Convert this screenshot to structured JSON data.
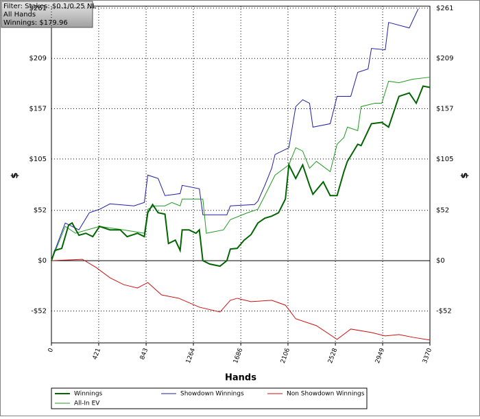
{
  "chart_data": {
    "type": "line",
    "filter": [
      "Filter: Stakes: $0.1/0.25 NL",
      "All Hands",
      "Winnings: $179.96"
    ],
    "x_label": "Hands",
    "y_label": "$",
    "xlim": [
      0,
      3370
    ],
    "xticks": [
      0,
      421,
      843,
      1264,
      1686,
      2106,
      2528,
      2949,
      3370
    ],
    "ylim": [
      -85,
      263
    ],
    "yticks": [
      {
        "value": -52,
        "label": "-$52"
      },
      {
        "value": 0,
        "label": "$0"
      },
      {
        "value": 52,
        "label": "$52"
      },
      {
        "value": 105,
        "label": "$105"
      },
      {
        "value": 157,
        "label": "$157"
      },
      {
        "value": 209,
        "label": "$209"
      },
      {
        "value": 261,
        "label": "$261"
      }
    ],
    "grid": true,
    "legend": "bottom",
    "series": [
      {
        "name": "Winnings",
        "color": "#006400",
        "x": [
          0,
          31,
          92,
          153,
          184,
          245,
          306,
          368,
          429,
          521,
          613,
          674,
          766,
          827,
          858,
          901,
          950,
          1011,
          1042,
          1103,
          1146,
          1164,
          1225,
          1287,
          1317,
          1348,
          1409,
          1501,
          1562,
          1593,
          1654,
          1716,
          1777,
          1838,
          1900,
          1961,
          2022,
          2083,
          2114,
          2175,
          2237,
          2298,
          2328,
          2420,
          2482,
          2543,
          2604,
          2635,
          2727,
          2757,
          2849,
          2941,
          3002,
          3094,
          3186,
          3248,
          3309,
          3370
        ],
        "values": [
          0,
          10.6,
          12.7,
          36.8,
          38.9,
          26.2,
          28.3,
          24.8,
          35.4,
          31.8,
          31.8,
          24.8,
          28.3,
          24.8,
          49.5,
          58.0,
          49.5,
          48.1,
          17.7,
          21.2,
          10.6,
          31.8,
          31.8,
          28.3,
          31.8,
          0,
          -3.5,
          -5.7,
          0,
          12.0,
          12.7,
          21.2,
          26.9,
          38.9,
          43.9,
          46.0,
          49.5,
          63.7,
          99.0,
          84.9,
          99.0,
          77.8,
          68.6,
          81.4,
          67.2,
          67.2,
          92.0,
          102.6,
          120.3,
          118.9,
          141.5,
          142.9,
          138.0,
          169.8,
          173.3,
          162.7,
          180.4,
          179.0
        ]
      },
      {
        "name": "Showdown Winnings",
        "color": "#1c1ca8",
        "x": [
          0,
          31,
          123,
          245,
          337,
          429,
          521,
          735,
          827,
          858,
          950,
          1011,
          1146,
          1164,
          1317,
          1348,
          1562,
          1593,
          1808,
          1838,
          1900,
          1961,
          1991,
          2114,
          2175,
          2237,
          2298,
          2328,
          2482,
          2543,
          2665,
          2727,
          2819,
          2849,
          2972,
          3002,
          3186,
          3266
        ],
        "values": [
          0,
          10.6,
          38.9,
          31.8,
          49.5,
          53.1,
          58.7,
          56.6,
          60.1,
          88.4,
          84.9,
          67.2,
          69.3,
          77.8,
          74.3,
          47.4,
          47.4,
          56.6,
          58.0,
          61.5,
          77.8,
          95.5,
          109.7,
          116.7,
          159.2,
          166.3,
          162.7,
          138.0,
          141.5,
          169.8,
          169.8,
          194.6,
          198.1,
          219.3,
          217.9,
          246.2,
          240.5,
          260.3
        ]
      },
      {
        "name": "Non Showdown Winnings",
        "color": "#cc1010",
        "x": [
          0,
          276,
          398,
          521,
          643,
          766,
          858,
          980,
          1134,
          1317,
          1501,
          1593,
          1654,
          1777,
          1961,
          2083,
          2175,
          2359,
          2543,
          2665,
          2849,
          2972,
          3094,
          3217,
          3370
        ],
        "values": [
          0,
          1.4,
          -7.1,
          -17.7,
          -24.8,
          -28.3,
          -22.6,
          -35.4,
          -38.9,
          -48.1,
          -53.1,
          -41.0,
          -38.9,
          -42.4,
          -41.0,
          -46.0,
          -60.1,
          -67.2,
          -81.4,
          -70.7,
          -74.3,
          -77.8,
          -76.4,
          -79.2,
          -82.1
        ]
      },
      {
        "name": "All-In EV",
        "color": "#1f9a1f",
        "x": [
          0,
          123,
          214,
          429,
          643,
          827,
          858,
          919,
          1011,
          1072,
          1146,
          1164,
          1348,
          1379,
          1532,
          1593,
          1746,
          1838,
          1900,
          1991,
          2114,
          2175,
          2237,
          2298,
          2359,
          2482,
          2543,
          2604,
          2635,
          2727,
          2757,
          2880,
          2941,
          3002,
          3094,
          3217,
          3370
        ],
        "values": [
          0,
          35.4,
          28.3,
          35.4,
          31.8,
          28.3,
          53.1,
          56.6,
          56.6,
          60.1,
          56.6,
          63.7,
          63.7,
          28.3,
          31.8,
          42.4,
          49.5,
          53.1,
          67.2,
          88.4,
          99.0,
          116.7,
          113.2,
          95.5,
          102.6,
          92.0,
          120.3,
          127.3,
          138.0,
          134.4,
          159.2,
          162.7,
          162.7,
          185.4,
          183.9,
          187.5,
          189.6
        ]
      }
    ]
  }
}
